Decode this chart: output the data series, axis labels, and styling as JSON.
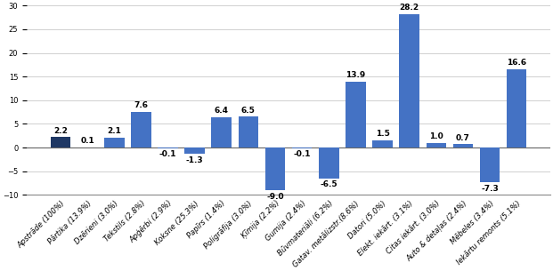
{
  "categories": [
    "Apstrāde (100%)",
    "Pārtika (13.9%)",
    "Dzērieni (3.0%)",
    "Tekstils (2.8%)",
    "Apģērbi (2.9%)",
    "Koksne (25.3%)",
    "Papīrs (1.4%)",
    "Poligrāfija (3.0%)",
    "Ķīmija (2.2%)",
    "Gumija (2.4%)",
    "Būvmateriāli (6.2%)",
    "Gatav. metālizstr.(8.6%)",
    "Datori (5.0%)",
    "Elekt. iekārt. (3.1%)",
    "Citas iekārt. (3.0%)",
    "Auto & detaļas (2.4%)",
    "Mēbeles (3.4%)",
    "Iekārtu remonts (5.1%)"
  ],
  "values": [
    2.2,
    0.1,
    2.1,
    7.6,
    -0.1,
    -1.3,
    6.4,
    6.5,
    -9.0,
    -0.1,
    -6.5,
    13.9,
    1.5,
    28.2,
    1.0,
    0.7,
    -7.3,
    16.6
  ],
  "bar_color_main": "#4472c4",
  "bar_color_first": "#1f3864",
  "ylim": [
    -10,
    30
  ],
  "yticks": [
    -10,
    -5,
    0,
    5,
    10,
    15,
    20,
    25,
    30
  ],
  "value_fontsize": 6.5,
  "tick_fontsize": 6.0,
  "background_color": "#ffffff",
  "grid_color": "#d0d0d0"
}
